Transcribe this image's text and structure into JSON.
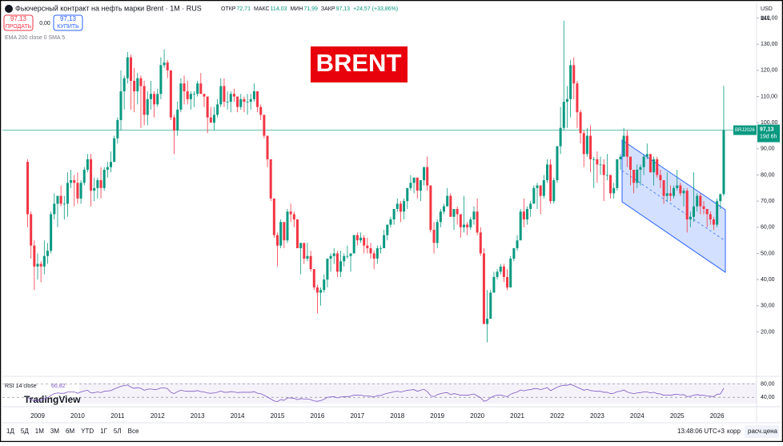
{
  "header": {
    "title": "Фьючерсный контракт на нефть марки Brent · 1M · RUS",
    "ohlc": [
      {
        "label": "ОТКР",
        "value": "72,71"
      },
      {
        "label": "МАКС",
        "value": "114,03"
      },
      {
        "label": "МИН",
        "value": "71,99"
      },
      {
        "label": "ЗАКР",
        "value": "97,13"
      }
    ],
    "change": "+24,57 (+33,86%)",
    "sell_price": "97,13",
    "sell": "ПРОДАТЬ",
    "spread": "0,00",
    "buy_price": "97,13",
    "buy": "КУПИТЬ",
    "indicator": "EMA 200 close 0 SMA 5",
    "currency": "USD",
    "unit": "BLL"
  },
  "banner": "BRENT",
  "chart_data": {
    "type": "candlestick",
    "yticks": [
      {
        "value": 20,
        "label": "20,00"
      },
      {
        "value": 30,
        "label": "30,00"
      },
      {
        "value": 40,
        "label": "40,00"
      },
      {
        "value": 50,
        "label": "50,00"
      },
      {
        "value": 60,
        "label": "60,00"
      },
      {
        "value": 70,
        "label": "70,00"
      },
      {
        "value": 80,
        "label": "80,00"
      },
      {
        "value": 90,
        "label": "90,00"
      },
      {
        "value": 100,
        "label": "100,00"
      },
      {
        "value": 110,
        "label": "110,00"
      },
      {
        "value": 120,
        "label": "120,00"
      },
      {
        "value": 130,
        "label": "130,00"
      },
      {
        "value": 140,
        "label": "140,00"
      }
    ],
    "ylim": [
      3.6,
      146
    ],
    "years": [
      "2009",
      "2010",
      "2011",
      "2012",
      "2013",
      "2014",
      "2015",
      "2016",
      "2017",
      "2018",
      "2019",
      "2020",
      "2021",
      "2022",
      "2023",
      "2024",
      "2025",
      "2026"
    ],
    "up_color": "#089981",
    "down_color": "#f23645",
    "last": {
      "symbol": "BRJ2026",
      "price": "97,13",
      "countdown": "19d 6h"
    },
    "candles": [
      [
        85,
        86,
        60,
        65
      ],
      [
        65,
        66,
        48,
        53
      ],
      [
        53,
        55,
        36,
        45
      ],
      [
        45,
        50,
        40,
        46
      ],
      [
        46,
        47,
        39,
        45
      ],
      [
        45,
        55,
        42,
        49
      ],
      [
        49,
        54,
        46,
        51
      ],
      [
        51,
        66,
        50,
        65
      ],
      [
        65,
        73,
        63,
        69
      ],
      [
        69,
        72,
        60,
        72
      ],
      [
        72,
        76,
        68,
        69
      ],
      [
        69,
        72,
        63,
        69
      ],
      [
        69,
        81,
        64,
        77
      ],
      [
        77,
        82,
        75,
        78
      ],
      [
        78,
        80,
        68,
        77
      ],
      [
        77,
        81,
        69,
        71
      ],
      [
        71,
        78,
        69,
        77
      ],
      [
        77,
        83,
        76,
        82
      ],
      [
        82,
        88,
        81,
        86
      ],
      [
        86,
        88,
        68,
        74
      ],
      [
        74,
        79,
        70,
        75
      ],
      [
        75,
        79,
        71,
        78
      ],
      [
        78,
        83,
        71,
        75
      ],
      [
        75,
        83,
        74,
        82
      ],
      [
        82,
        85,
        79,
        83
      ],
      [
        83,
        89,
        81,
        85
      ],
      [
        85,
        95,
        85,
        94
      ],
      [
        94,
        102,
        92,
        101
      ],
      [
        101,
        120,
        97,
        112
      ],
      [
        112,
        118,
        105,
        117
      ],
      [
        117,
        127,
        115,
        125
      ],
      [
        125,
        126,
        105,
        116
      ],
      [
        116,
        121,
        104,
        112
      ],
      [
        112,
        119,
        107,
        117
      ],
      [
        117,
        118,
        98,
        114
      ],
      [
        114,
        116,
        99,
        103
      ],
      [
        103,
        112,
        99,
        109
      ],
      [
        109,
        116,
        105,
        111
      ],
      [
        111,
        112,
        102,
        107
      ],
      [
        107,
        113,
        106,
        111
      ],
      [
        111,
        125,
        109,
        122
      ],
      [
        122,
        128,
        121,
        123
      ],
      [
        123,
        124,
        117,
        120
      ],
      [
        120,
        120,
        101,
        102
      ],
      [
        102,
        103,
        88,
        97
      ],
      [
        97,
        108,
        95,
        105
      ],
      [
        105,
        117,
        104,
        115
      ],
      [
        115,
        118,
        107,
        112
      ],
      [
        112,
        116,
        107,
        109
      ],
      [
        109,
        112,
        105,
        111
      ],
      [
        111,
        112,
        106,
        111
      ],
      [
        111,
        116,
        110,
        115
      ],
      [
        115,
        119,
        111,
        111
      ],
      [
        111,
        111,
        106,
        110
      ],
      [
        110,
        110,
        96,
        102
      ],
      [
        102,
        106,
        101,
        100
      ],
      [
        100,
        106,
        97,
        103
      ],
      [
        103,
        109,
        102,
        107
      ],
      [
        107,
        117,
        106,
        114
      ],
      [
        114,
        117,
        106,
        108
      ],
      [
        108,
        112,
        105,
        108
      ],
      [
        108,
        112,
        104,
        111
      ],
      [
        111,
        113,
        108,
        110
      ],
      [
        110,
        110,
        104,
        106
      ],
      [
        106,
        111,
        105,
        109
      ],
      [
        109,
        110,
        104,
        108
      ],
      [
        108,
        111,
        103,
        108
      ],
      [
        108,
        111,
        105,
        109
      ],
      [
        109,
        115,
        108,
        112
      ],
      [
        112,
        112,
        104,
        106
      ],
      [
        106,
        107,
        101,
        103
      ],
      [
        103,
        103,
        94,
        95
      ],
      [
        95,
        95,
        83,
        86
      ],
      [
        86,
        86,
        70,
        71
      ],
      [
        71,
        71,
        56,
        57
      ],
      [
        57,
        58,
        45,
        53
      ],
      [
        53,
        63,
        52,
        62
      ],
      [
        62,
        62,
        52,
        55
      ],
      [
        55,
        67,
        54,
        66
      ],
      [
        66,
        69,
        62,
        65
      ],
      [
        65,
        66,
        60,
        63
      ],
      [
        63,
        63,
        52,
        52
      ],
      [
        52,
        54,
        42,
        54
      ],
      [
        54,
        54,
        46,
        48
      ],
      [
        48,
        54,
        47,
        49
      ],
      [
        49,
        51,
        43,
        44
      ],
      [
        44,
        44,
        36,
        37
      ],
      [
        37,
        38,
        27,
        35
      ],
      [
        35,
        37,
        30,
        36
      ],
      [
        36,
        42,
        35,
        40
      ],
      [
        40,
        48,
        37,
        48
      ],
      [
        48,
        50,
        43,
        49
      ],
      [
        49,
        52,
        46,
        50
      ],
      [
        50,
        51,
        41,
        43
      ],
      [
        43,
        51,
        41,
        47
      ],
      [
        47,
        50,
        45,
        49
      ],
      [
        49,
        53,
        48,
        49
      ],
      [
        49,
        50,
        43,
        50
      ],
      [
        50,
        57,
        50,
        57
      ],
      [
        57,
        58,
        53,
        55
      ],
      [
        55,
        58,
        54,
        56
      ],
      [
        56,
        57,
        50,
        53
      ],
      [
        53,
        56,
        50,
        52
      ],
      [
        52,
        54,
        48,
        50
      ],
      [
        50,
        51,
        44,
        48
      ],
      [
        48,
        53,
        46,
        52
      ],
      [
        52,
        53,
        50,
        52
      ],
      [
        52,
        59,
        52,
        57
      ],
      [
        57,
        61,
        55,
        61
      ],
      [
        61,
        64,
        60,
        63
      ],
      [
        63,
        67,
        61,
        67
      ],
      [
        67,
        71,
        66,
        69
      ],
      [
        69,
        70,
        62,
        66
      ],
      [
        66,
        71,
        63,
        70
      ],
      [
        70,
        75,
        67,
        75
      ],
      [
        75,
        80,
        74,
        77
      ],
      [
        77,
        79,
        73,
        79
      ],
      [
        79,
        79,
        71,
        74
      ],
      [
        74,
        78,
        70,
        78
      ],
      [
        78,
        83,
        76,
        83
      ],
      [
        83,
        87,
        74,
        76
      ],
      [
        76,
        76,
        58,
        59
      ],
      [
        59,
        62,
        50,
        54
      ],
      [
        54,
        63,
        52,
        62
      ],
      [
        62,
        67,
        60,
        66
      ],
      [
        66,
        69,
        65,
        68
      ],
      [
        68,
        75,
        68,
        72
      ],
      [
        72,
        73,
        64,
        64
      ],
      [
        64,
        67,
        59,
        67
      ],
      [
        67,
        68,
        61,
        65
      ],
      [
        65,
        65,
        56,
        60
      ],
      [
        60,
        72,
        58,
        61
      ],
      [
        61,
        62,
        57,
        60
      ],
      [
        60,
        64,
        59,
        63
      ],
      [
        63,
        68,
        61,
        66
      ],
      [
        66,
        71,
        57,
        58
      ],
      [
        58,
        60,
        49,
        50
      ],
      [
        50,
        52,
        24,
        23
      ],
      [
        23,
        36,
        16,
        25
      ],
      [
        25,
        36,
        25,
        35
      ],
      [
        35,
        43,
        35,
        41
      ],
      [
        41,
        44,
        40,
        43
      ],
      [
        43,
        46,
        42,
        45
      ],
      [
        45,
        46,
        39,
        41
      ],
      [
        41,
        44,
        36,
        37
      ],
      [
        37,
        49,
        37,
        48
      ],
      [
        48,
        52,
        47,
        52
      ],
      [
        52,
        57,
        51,
        55
      ],
      [
        55,
        67,
        55,
        66
      ],
      [
        66,
        71,
        60,
        63
      ],
      [
        63,
        68,
        61,
        67
      ],
      [
        67,
        70,
        64,
        69
      ],
      [
        69,
        76,
        69,
        75
      ],
      [
        75,
        77,
        67,
        76
      ],
      [
        76,
        76,
        65,
        72
      ],
      [
        72,
        80,
        71,
        78
      ],
      [
        78,
        86,
        77,
        84
      ],
      [
        84,
        86,
        69,
        70
      ],
      [
        70,
        79,
        69,
        78
      ],
      [
        78,
        91,
        77,
        91
      ],
      [
        91,
        106,
        88,
        98
      ],
      [
        98,
        139,
        97,
        108
      ],
      [
        108,
        114,
        98,
        109
      ],
      [
        109,
        124,
        102,
        122
      ],
      [
        122,
        125,
        109,
        115
      ],
      [
        115,
        116,
        98,
        104
      ],
      [
        104,
        105,
        92,
        96
      ],
      [
        96,
        97,
        83,
        88
      ],
      [
        88,
        98,
        87,
        95
      ],
      [
        95,
        99,
        81,
        86
      ],
      [
        86,
        87,
        75,
        86
      ],
      [
        86,
        89,
        77,
        84
      ],
      [
        84,
        87,
        80,
        84
      ],
      [
        84,
        86,
        70,
        80
      ],
      [
        80,
        88,
        78,
        80
      ],
      [
        80,
        80,
        71,
        73
      ],
      [
        73,
        77,
        71,
        75
      ],
      [
        75,
        86,
        74,
        86
      ],
      [
        86,
        88,
        82,
        87
      ],
      [
        87,
        98,
        87,
        95
      ],
      [
        95,
        97,
        83,
        87
      ],
      [
        87,
        87,
        76,
        82
      ],
      [
        82,
        82,
        73,
        77
      ],
      [
        77,
        84,
        75,
        82
      ],
      [
        82,
        84,
        76,
        83
      ],
      [
        83,
        88,
        80,
        87
      ],
      [
        87,
        92,
        86,
        88
      ],
      [
        88,
        88,
        81,
        81
      ],
      [
        81,
        87,
        76,
        86
      ],
      [
        86,
        87,
        79,
        80
      ],
      [
        80,
        82,
        75,
        78
      ],
      [
        78,
        78,
        69,
        72
      ],
      [
        72,
        81,
        70,
        73
      ],
      [
        73,
        76,
        70,
        72
      ],
      [
        72,
        76,
        71,
        75
      ],
      [
        75,
        82,
        74,
        76
      ],
      [
        76,
        77,
        72,
        73
      ],
      [
        73,
        75,
        68,
        74
      ],
      [
        74,
        75,
        58,
        63
      ],
      [
        63,
        66,
        60,
        64
      ],
      [
        64,
        81,
        62,
        68
      ],
      [
        68,
        73,
        66,
        72
      ],
      [
        72,
        73,
        65,
        68
      ],
      [
        68,
        70,
        65,
        67
      ],
      [
        67,
        67,
        60,
        65
      ],
      [
        65,
        66,
        61,
        63
      ],
      [
        63,
        64,
        59,
        61
      ],
      [
        61,
        71,
        60,
        70
      ],
      [
        70,
        73,
        67,
        72.6
      ],
      [
        72.71,
        114.03,
        71.99,
        97.13
      ]
    ],
    "rsi": {
      "name": "RSI 14 close",
      "value_label": "66,82",
      "ylim": [
        14,
        98
      ],
      "yticks": [
        {
          "value": 80,
          "label": "80,00"
        },
        {
          "value": 40,
          "label": "40,00"
        }
      ],
      "color": "#7e57c2",
      "values": [
        40,
        33,
        30,
        31,
        31,
        36,
        38,
        46,
        51,
        53,
        52,
        52,
        56,
        56,
        56,
        52,
        56,
        59,
        61,
        53,
        54,
        56,
        54,
        58,
        59,
        60,
        65,
        69,
        73,
        75,
        77,
        70,
        67,
        69,
        67,
        61,
        64,
        65,
        63,
        64,
        68,
        68,
        66,
        55,
        51,
        57,
        61,
        59,
        58,
        58,
        58,
        60,
        57,
        56,
        53,
        52,
        53,
        55,
        59,
        55,
        55,
        57,
        56,
        54,
        55,
        55,
        55,
        55,
        57,
        52,
        51,
        46,
        41,
        35,
        29,
        27,
        33,
        31,
        38,
        38,
        37,
        33,
        36,
        35,
        35,
        33,
        29,
        28,
        30,
        34,
        40,
        41,
        42,
        38,
        41,
        42,
        42,
        43,
        47,
        46,
        47,
        44,
        44,
        43,
        41,
        45,
        45,
        49,
        52,
        54,
        57,
        58,
        56,
        58,
        61,
        62,
        63,
        58,
        61,
        64,
        57,
        45,
        42,
        48,
        51,
        53,
        54,
        48,
        51,
        49,
        46,
        47,
        46,
        48,
        50,
        44,
        39,
        28,
        31,
        39,
        44,
        46,
        47,
        44,
        42,
        49,
        53,
        56,
        62,
        59,
        62,
        63,
        66,
        66,
        63,
        66,
        69,
        60,
        65,
        70,
        74,
        76,
        76,
        79,
        75,
        70,
        66,
        61,
        64,
        60,
        59,
        58,
        58,
        55,
        55,
        51,
        52,
        57,
        58,
        62,
        56,
        53,
        51,
        53,
        54,
        56,
        56,
        53,
        55,
        51,
        50,
        46,
        47,
        46,
        48,
        49,
        47,
        48,
        42,
        43,
        46,
        48,
        46,
        46,
        44,
        43,
        42,
        49,
        50,
        66.82
      ]
    }
  },
  "footer": {
    "brand": "TradingView",
    "ranges": [
      "1Д",
      "5Д",
      "1М",
      "3М",
      "6М",
      "YTD",
      "1Г",
      "5Л",
      "Все"
    ],
    "time": "13:48:06 UTC+3",
    "adj": "корр",
    "calc": "расч.цена"
  }
}
